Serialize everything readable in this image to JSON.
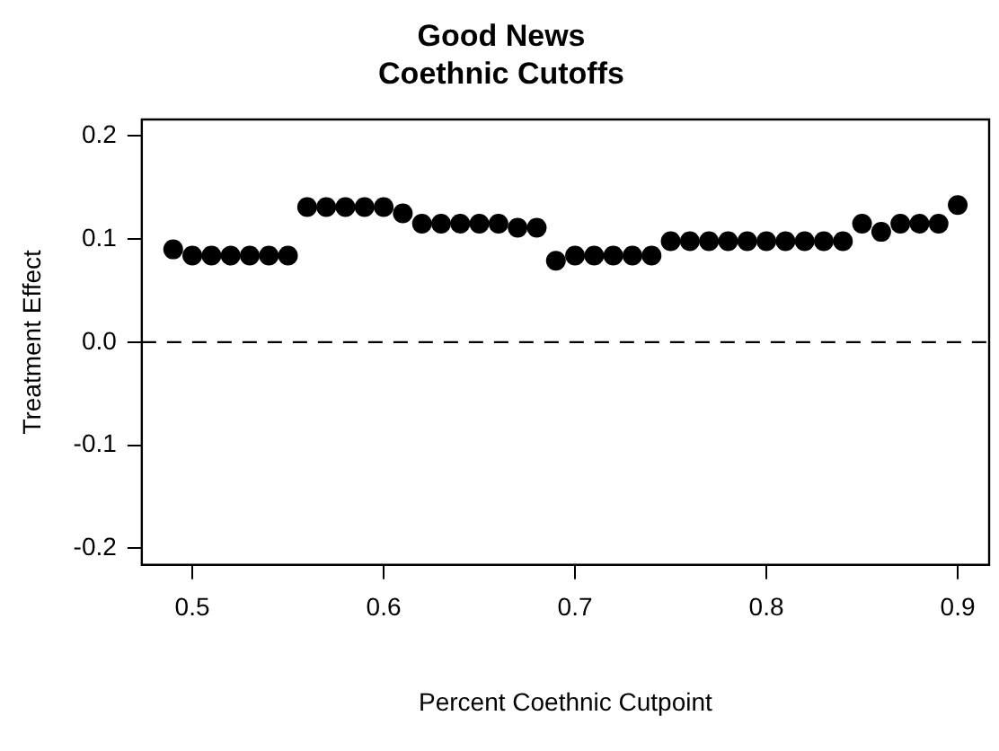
{
  "chart_data": {
    "type": "scatter",
    "title": "Good News\nCoethnic Cutoffs",
    "xlabel": "Percent Coethnic Cutpoint",
    "ylabel": "Treatment Effect",
    "x": [
      0.49,
      0.5,
      0.51,
      0.52,
      0.53,
      0.54,
      0.55,
      0.56,
      0.57,
      0.58,
      0.59,
      0.6,
      0.61,
      0.62,
      0.63,
      0.64,
      0.65,
      0.66,
      0.67,
      0.68,
      0.69,
      0.7,
      0.71,
      0.72,
      0.73,
      0.74,
      0.75,
      0.76,
      0.77,
      0.78,
      0.79,
      0.8,
      0.81,
      0.82,
      0.83,
      0.84,
      0.85,
      0.86,
      0.87,
      0.88,
      0.89,
      0.9
    ],
    "series": [
      {
        "color": "#000000",
        "values": [
          0.09,
          0.084,
          0.084,
          0.084,
          0.084,
          0.084,
          0.084,
          0.131,
          0.131,
          0.131,
          0.131,
          0.131,
          0.125,
          0.115,
          0.115,
          0.115,
          0.115,
          0.115,
          0.111,
          0.111,
          0.079,
          0.084,
          0.084,
          0.084,
          0.084,
          0.084,
          0.098,
          0.098,
          0.098,
          0.098,
          0.098,
          0.098,
          0.098,
          0.098,
          0.098,
          0.098,
          0.115,
          0.107,
          0.115,
          0.115,
          0.115,
          0.133
        ]
      }
    ],
    "xlim": [
      0.4736,
      0.9164
    ],
    "ylim": [
      -0.216,
      0.216
    ],
    "xticks": [
      0.5,
      0.6,
      0.7,
      0.8,
      0.9
    ],
    "yticks": [
      -0.2,
      -0.1,
      {
        "value": 0,
        "label": "0.0"
      },
      0.1,
      0.2
    ],
    "ref_lines": [
      {
        "axis": "y",
        "value": 0,
        "line_style": "dashed",
        "color": "#000000"
      }
    ],
    "grid": false,
    "legend": false,
    "marker": "circle"
  }
}
